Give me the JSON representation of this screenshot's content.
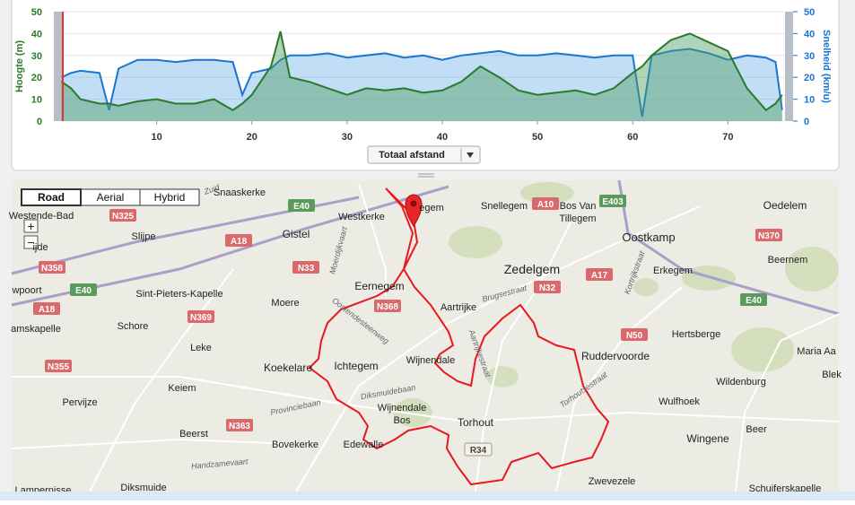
{
  "chart_data": {
    "type": "area",
    "ylabel": "Hoogte (m)",
    "y2label": "Snelheid (km/u)",
    "x": [
      0,
      1,
      2,
      4,
      5,
      6,
      8,
      10,
      12,
      14,
      16,
      18,
      19,
      20,
      22,
      23,
      24,
      26,
      28,
      30,
      32,
      34,
      36,
      38,
      40,
      42,
      44,
      46,
      48,
      50,
      52,
      54,
      56,
      58,
      60,
      61,
      62,
      64,
      66,
      68,
      70,
      72,
      74,
      75,
      75.7
    ],
    "series": [
      {
        "color": "#2a7a2a",
        "values": [
          18,
          15,
          10,
          8,
          8,
          7,
          9,
          10,
          8,
          8,
          10,
          5,
          8,
          12,
          25,
          41,
          20,
          18,
          15,
          12,
          15,
          14,
          15,
          13,
          14,
          18,
          25,
          20,
          14,
          12,
          13,
          14,
          12,
          15,
          22,
          25,
          30,
          37,
          40,
          36,
          32,
          15,
          5,
          8,
          12
        ]
      },
      {
        "color": "#1a74d0",
        "axis": "y2",
        "values": [
          20,
          22,
          23,
          22,
          5,
          24,
          28,
          28,
          27,
          28,
          28,
          27,
          12,
          22,
          24,
          28,
          30,
          30,
          31,
          29,
          30,
          31,
          29,
          30,
          28,
          30,
          31,
          32,
          30,
          30,
          31,
          30,
          29,
          30,
          30,
          2,
          30,
          32,
          33,
          31,
          28,
          30,
          29,
          27,
          5
        ]
      }
    ],
    "xlim": [
      0,
      76
    ],
    "xticks": [
      10,
      20,
      30,
      40,
      50,
      60,
      70
    ],
    "ylim": [
      0,
      50
    ],
    "yticks": [
      0,
      10,
      20,
      30,
      40,
      50
    ],
    "y2lim": [
      0,
      50
    ],
    "y2ticks": [
      0,
      10,
      20,
      30,
      40,
      50
    ],
    "grid": true
  },
  "dropdown": "Totaal afstand",
  "map": {
    "buttons": [
      "Road",
      "Aerial",
      "Hybrid"
    ],
    "zoom": [
      "+",
      "−"
    ],
    "places": [
      "Snaaskerke",
      "Westkerke",
      "Westende-Bad",
      "Gistel",
      "Slijpe",
      "egem",
      "Snellegem",
      "Bos Van",
      "Tillegem",
      "Oedelem",
      "Oostkamp",
      "Beernem",
      "ijde",
      "Zedelgem",
      "Erkegem",
      "Eernegem",
      "wpoort",
      "Sint-Pieters-Kapelle",
      "Moere",
      "Aartrijke",
      "Schore",
      "amskapelle",
      "Hertsberge",
      "Leke",
      "Ruddervoorde",
      "Maria Aa",
      "Koekelare",
      "Ichtegem",
      "Wijnendale",
      "Blek",
      "Wildenburg",
      "Keiem",
      "Wulfhoek",
      "Pervijze",
      "Wijnendale",
      "Bos",
      "Torhout",
      "Beerst",
      "Beer",
      "Wingene",
      "Bovekerke",
      "Edewalle",
      "Zwevezele",
      "Diksmuide",
      "Schuiferskapelle",
      "Lampernisse"
    ],
    "roads": [
      "N325",
      "E40",
      "A18",
      "N33",
      "N358",
      "E40",
      "N368",
      "N369",
      "A18",
      "N355",
      "N363",
      "A10",
      "E403",
      "A17",
      "N32",
      "N50",
      "N370",
      "E40",
      "R34"
    ],
    "streets": [
      "Oostendesteenweg",
      "Aartrijkestraat",
      "Brugsestraat",
      "Diksmuidebaan",
      "Provinciebaan",
      "Torhoutsestraat",
      "Kortrijkstraat",
      "Handzamevaart",
      "Moerdijkvaart",
      "Zuid"
    ]
  }
}
